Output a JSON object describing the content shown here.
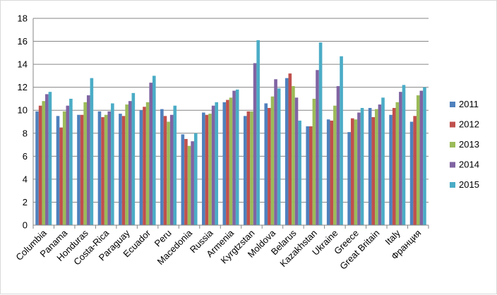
{
  "chart_data": {
    "type": "bar",
    "title": "",
    "xlabel": "",
    "ylabel": "",
    "ylim": [
      0,
      18
    ],
    "yticks": [
      0,
      2,
      4,
      6,
      8,
      10,
      12,
      14,
      16,
      18
    ],
    "grid": "horizontal",
    "legend_position": "right",
    "categories": [
      "Columbia",
      "Panama",
      "Honduras",
      "Costa-Rica",
      "Paraguay",
      "Ecuador",
      "Peru",
      "Macedonia",
      "Russia",
      "Armenia",
      "Kyrgtzstan",
      "Moldova",
      "Belarus",
      "Kazakhstan",
      "Ukraine",
      "Greece",
      "Great Britain",
      "Italy",
      "Франция"
    ],
    "series": [
      {
        "name": "2011",
        "color": "#4f81bd",
        "values": [
          9.9,
          9.5,
          9.6,
          9.9,
          9.7,
          10.0,
          10.1,
          7.9,
          9.8,
          10.7,
          9.5,
          10.6,
          12.8,
          8.6,
          9.2,
          8.1,
          10.2,
          9.6,
          9.0
        ]
      },
      {
        "name": "2012",
        "color": "#c0504d",
        "values": [
          10.4,
          8.5,
          9.6,
          9.4,
          9.5,
          10.3,
          9.5,
          7.5,
          9.6,
          10.9,
          9.9,
          10.2,
          13.2,
          8.6,
          9.1,
          9.3,
          9.4,
          10.2,
          9.5
        ]
      },
      {
        "name": "2013",
        "color": "#9bbb59",
        "values": [
          10.8,
          9.9,
          10.7,
          9.6,
          10.5,
          10.7,
          9.0,
          6.9,
          9.7,
          11.1,
          9.9,
          11.2,
          12.1,
          11.0,
          10.4,
          9.2,
          10.1,
          10.7,
          11.3
        ]
      },
      {
        "name": "2014",
        "color": "#8064a2",
        "values": [
          11.4,
          10.4,
          11.3,
          9.9,
          10.8,
          12.4,
          9.6,
          7.3,
          10.4,
          11.7,
          14.1,
          12.7,
          11.1,
          13.5,
          12.1,
          9.8,
          10.5,
          11.6,
          11.7
        ]
      },
      {
        "name": "2015",
        "color": "#4bacc6",
        "values": [
          11.6,
          11.0,
          12.8,
          10.6,
          11.5,
          13.0,
          10.4,
          8.0,
          10.7,
          11.8,
          16.1,
          11.9,
          9.1,
          15.9,
          14.7,
          10.2,
          11.1,
          12.2,
          12.0
        ]
      }
    ]
  }
}
